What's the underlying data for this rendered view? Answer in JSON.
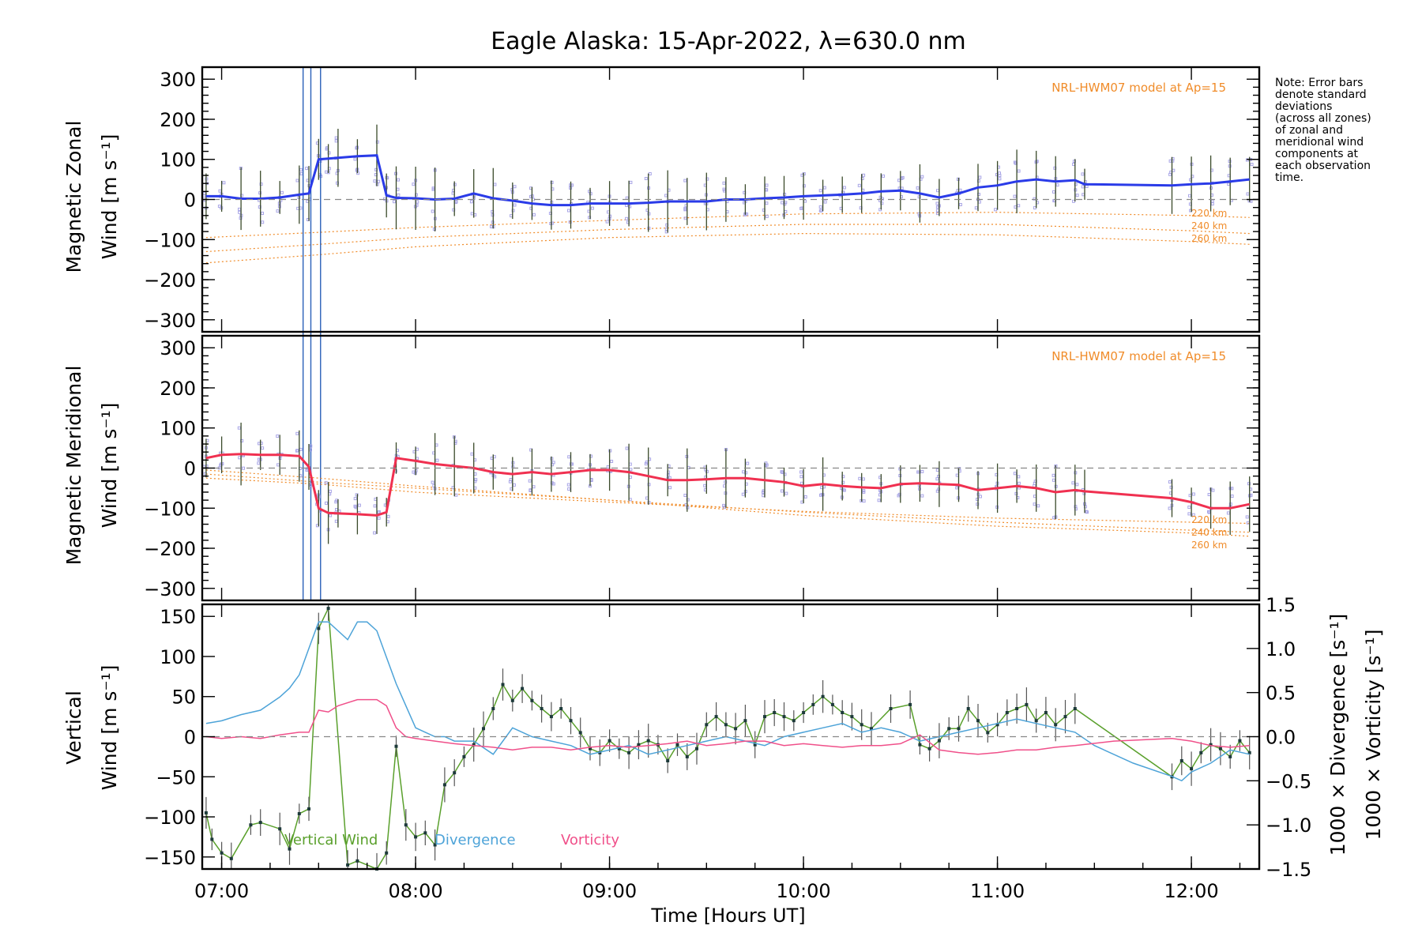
{
  "chart_data": [
    {
      "panel": "zonal",
      "type": "line",
      "title": "Eagle Alaska: 15-Apr-2022, λ=630.0 nm",
      "ylabel": [
        "Magnetic Zonal",
        "Wind [m s⁻¹]"
      ],
      "ylim": [
        -330,
        330
      ],
      "yticks": [
        300,
        200,
        100,
        0,
        -100,
        -200,
        -300
      ],
      "model_label": "NRL-HWM07 model at Ap=15",
      "altitude_labels": [
        "220 km",
        "240 km",
        "260 km"
      ],
      "reference_line": 0,
      "colors": {
        "wind": "#2a3be8",
        "model": "#f08c2a",
        "samples": "#a9a6e6",
        "errorbar": "#3a4a2a"
      },
      "series": [
        {
          "x": [
            6.92,
            7.0,
            7.1,
            7.2,
            7.3,
            7.4,
            7.45,
            7.5,
            7.55,
            7.6,
            7.7,
            7.8,
            7.85,
            7.9,
            8.0,
            8.1,
            8.2,
            8.3,
            8.4,
            8.5,
            8.6,
            8.7,
            8.8,
            8.9,
            9.0,
            9.1,
            9.2,
            9.3,
            9.4,
            9.5,
            9.6,
            9.7,
            9.8,
            9.9,
            10.0,
            10.1,
            10.2,
            10.3,
            10.4,
            10.5,
            10.6,
            10.7,
            10.8,
            10.9,
            11.0,
            11.1,
            11.2,
            11.3,
            11.4,
            11.45,
            11.9,
            12.0,
            12.1,
            12.2,
            12.3
          ],
          "values": [
            8,
            8,
            2,
            2,
            5,
            12,
            15,
            100,
            102,
            104,
            108,
            110,
            10,
            4,
            3,
            0,
            2,
            15,
            3,
            -3,
            -10,
            -14,
            -14,
            -10,
            -10,
            -10,
            -8,
            -5,
            -5,
            -5,
            0,
            0,
            3,
            5,
            8,
            10,
            12,
            15,
            20,
            22,
            15,
            5,
            15,
            30,
            35,
            45,
            50,
            45,
            48,
            38,
            35,
            38,
            40,
            45,
            50
          ]
        }
      ],
      "model_curves": [
        {
          "name": "220 km",
          "x": [
            6.92,
            7.5,
            8.0,
            9.0,
            10.0,
            11.0,
            12.0,
            12.3
          ],
          "values": [
            -95,
            -82,
            -70,
            -52,
            -36,
            -32,
            -40,
            -45
          ]
        },
        {
          "name": "240 km",
          "x": [
            6.92,
            7.5,
            8.0,
            9.0,
            10.0,
            11.0,
            12.0,
            12.3
          ],
          "values": [
            -130,
            -112,
            -95,
            -75,
            -62,
            -62,
            -78,
            -85
          ]
        },
        {
          "name": "260 km",
          "x": [
            6.92,
            7.5,
            8.0,
            9.0,
            10.0,
            11.0,
            12.0,
            12.3
          ],
          "values": [
            -158,
            -138,
            -118,
            -95,
            -85,
            -88,
            -105,
            -112
          ]
        }
      ]
    },
    {
      "panel": "meridional",
      "type": "line",
      "ylabel": [
        "Magnetic Meridional",
        "Wind [m s⁻¹]"
      ],
      "ylim": [
        -330,
        330
      ],
      "yticks": [
        300,
        200,
        100,
        0,
        -100,
        -200,
        -300
      ],
      "model_label": "NRL-HWM07 model at Ap=15",
      "altitude_labels": [
        "220 km",
        "240 km",
        "260 km"
      ],
      "reference_line": 0,
      "colors": {
        "wind": "#f03050",
        "model": "#f08c2a",
        "samples": "#a9a6e6",
        "errorbar": "#3a4a2a"
      },
      "series": [
        {
          "x": [
            6.92,
            7.0,
            7.1,
            7.2,
            7.3,
            7.4,
            7.45,
            7.5,
            7.55,
            7.6,
            7.7,
            7.8,
            7.85,
            7.9,
            8.0,
            8.1,
            8.2,
            8.3,
            8.4,
            8.5,
            8.6,
            8.7,
            8.8,
            8.9,
            9.0,
            9.1,
            9.2,
            9.3,
            9.4,
            9.5,
            9.6,
            9.7,
            9.8,
            9.9,
            10.0,
            10.1,
            10.2,
            10.3,
            10.4,
            10.5,
            10.6,
            10.7,
            10.8,
            10.9,
            11.0,
            11.1,
            11.2,
            11.3,
            11.4,
            11.45,
            11.9,
            12.0,
            12.1,
            12.2,
            12.3
          ],
          "values": [
            25,
            33,
            35,
            33,
            33,
            30,
            3,
            -100,
            -112,
            -113,
            -115,
            -118,
            -110,
            25,
            18,
            10,
            5,
            0,
            -10,
            -15,
            -10,
            -15,
            -10,
            -5,
            -5,
            -10,
            -20,
            -30,
            -30,
            -28,
            -25,
            -25,
            -30,
            -35,
            -45,
            -40,
            -45,
            -48,
            -50,
            -40,
            -38,
            -40,
            -42,
            -55,
            -50,
            -45,
            -50,
            -60,
            -55,
            -58,
            -75,
            -85,
            -100,
            -100,
            -90
          ]
        }
      ],
      "model_curves": [
        {
          "name": "220 km",
          "x": [
            6.92,
            7.5,
            8.0,
            9.0,
            10.0,
            11.0,
            12.0,
            12.3
          ],
          "values": [
            -25,
            -40,
            -60,
            -85,
            -108,
            -125,
            -135,
            -138
          ]
        },
        {
          "name": "240 km",
          "x": [
            6.92,
            7.5,
            8.0,
            9.0,
            10.0,
            11.0,
            12.0,
            12.3
          ],
          "values": [
            -15,
            -35,
            -50,
            -80,
            -110,
            -135,
            -155,
            -160
          ]
        },
        {
          "name": "260 km",
          "x": [
            6.92,
            7.5,
            8.0,
            9.0,
            10.0,
            11.0,
            12.0,
            12.3
          ],
          "values": [
            -5,
            -25,
            -45,
            -80,
            -118,
            -145,
            -162,
            -170
          ]
        }
      ]
    },
    {
      "panel": "vertical",
      "type": "line",
      "xlabel": "Time [Hours UT]",
      "xticks": [
        "07:00",
        "08:00",
        "09:00",
        "10:00",
        "11:00",
        "12:00"
      ],
      "xtick_values": [
        7,
        8,
        9,
        10,
        11,
        12
      ],
      "xlim": [
        6.9,
        12.35
      ],
      "ylabel_left": [
        "Vertical",
        "Wind [m s⁻¹]"
      ],
      "ylim_left": [
        -165,
        165
      ],
      "yticks_left": [
        150,
        100,
        50,
        0,
        -50,
        -100,
        -150
      ],
      "ylabel_right_divergence": "1000 × Divergence [s⁻¹]",
      "ylabel_right_vorticity": "1000 × Vorticity [s⁻¹]",
      "ylim_right": [
        -1.5,
        1.5
      ],
      "yticks_right": [
        "1.5",
        "1.0",
        "0.5",
        "0.0",
        "−0.5",
        "−1.0",
        "−1.5"
      ],
      "yticks_right_values": [
        1.5,
        1.0,
        0.5,
        0.0,
        -0.5,
        -1.0,
        -1.5
      ],
      "legend": [
        "Vertical Wind",
        "Divergence",
        "Vorticity"
      ],
      "reference_line": 0,
      "series": [
        {
          "name": "Vertical Wind",
          "color": "#5aa02c",
          "axis": "left",
          "x": [
            6.92,
            6.95,
            7.0,
            7.05,
            7.15,
            7.2,
            7.3,
            7.35,
            7.4,
            7.45,
            7.5,
            7.55,
            7.65,
            7.7,
            7.8,
            7.85,
            7.9,
            7.95,
            8.0,
            8.05,
            8.1,
            8.15,
            8.2,
            8.25,
            8.3,
            8.35,
            8.4,
            8.45,
            8.5,
            8.55,
            8.6,
            8.65,
            8.7,
            8.75,
            8.8,
            8.85,
            8.9,
            8.95,
            9.0,
            9.05,
            9.1,
            9.15,
            9.2,
            9.25,
            9.3,
            9.35,
            9.4,
            9.45,
            9.5,
            9.55,
            9.6,
            9.65,
            9.7,
            9.75,
            9.8,
            9.85,
            9.9,
            9.95,
            10.0,
            10.05,
            10.1,
            10.15,
            10.2,
            10.25,
            10.3,
            10.35,
            10.45,
            10.55,
            10.6,
            10.65,
            10.7,
            10.75,
            10.8,
            10.85,
            10.9,
            10.95,
            11.0,
            11.05,
            11.1,
            11.15,
            11.2,
            11.25,
            11.3,
            11.35,
            11.4,
            11.9,
            11.95,
            12.0,
            12.05,
            12.1,
            12.15,
            12.2,
            12.25,
            12.3
          ],
          "values": [
            -95,
            -128,
            -145,
            -152,
            -110,
            -107,
            -115,
            -140,
            -96,
            -90,
            135,
            160,
            -160,
            -155,
            -165,
            -145,
            -12,
            -110,
            -125,
            -120,
            -135,
            -60,
            -45,
            -25,
            -10,
            10,
            35,
            65,
            45,
            60,
            45,
            35,
            25,
            35,
            20,
            5,
            -15,
            -20,
            -5,
            -15,
            -20,
            -10,
            -5,
            -10,
            -30,
            -10,
            -25,
            -15,
            15,
            25,
            15,
            10,
            20,
            -10,
            25,
            30,
            25,
            20,
            30,
            40,
            50,
            40,
            30,
            25,
            15,
            10,
            35,
            40,
            -10,
            -15,
            -5,
            10,
            10,
            35,
            20,
            5,
            15,
            30,
            35,
            40,
            20,
            30,
            15,
            25,
            35,
            -50,
            -30,
            -40,
            -20,
            -10,
            -15,
            -25,
            -5,
            -20
          ]
        },
        {
          "name": "Divergence",
          "color": "#4da3d8",
          "axis": "right",
          "x": [
            6.92,
            7.0,
            7.1,
            7.2,
            7.3,
            7.35,
            7.4,
            7.45,
            7.5,
            7.55,
            7.6,
            7.65,
            7.7,
            7.75,
            7.8,
            7.85,
            7.9,
            7.95,
            8.0,
            8.05,
            8.1,
            8.15,
            8.2,
            8.3,
            8.4,
            8.5,
            8.6,
            8.7,
            8.8,
            8.9,
            9.0,
            9.1,
            9.2,
            9.3,
            9.4,
            9.5,
            9.6,
            9.7,
            9.8,
            9.9,
            10.0,
            10.1,
            10.2,
            10.3,
            10.4,
            10.5,
            10.6,
            10.7,
            10.8,
            10.9,
            11.0,
            11.1,
            11.2,
            11.3,
            11.4,
            11.5,
            11.7,
            11.9,
            11.95,
            12.0,
            12.1,
            12.2,
            12.3
          ],
          "values": [
            0.15,
            0.18,
            0.25,
            0.3,
            0.45,
            0.55,
            0.7,
            1.0,
            1.3,
            1.3,
            1.2,
            1.1,
            1.3,
            1.3,
            1.2,
            0.9,
            0.6,
            0.35,
            0.1,
            0.05,
            0.0,
            0.0,
            -0.05,
            -0.05,
            -0.2,
            0.1,
            0.0,
            -0.05,
            -0.1,
            -0.2,
            -0.15,
            -0.1,
            -0.2,
            -0.15,
            -0.1,
            -0.05,
            0.0,
            -0.05,
            -0.1,
            0.0,
            0.05,
            0.1,
            0.15,
            0.05,
            0.1,
            0.05,
            -0.05,
            0.0,
            0.05,
            0.1,
            0.15,
            0.2,
            0.15,
            0.1,
            0.05,
            -0.1,
            -0.3,
            -0.45,
            -0.5,
            -0.4,
            -0.3,
            -0.15,
            -0.2
          ]
        },
        {
          "name": "Vorticity",
          "color": "#f0508a",
          "axis": "right",
          "x": [
            6.92,
            7.0,
            7.1,
            7.2,
            7.3,
            7.4,
            7.45,
            7.5,
            7.55,
            7.6,
            7.7,
            7.8,
            7.85,
            7.9,
            7.95,
            8.0,
            8.1,
            8.2,
            8.3,
            8.4,
            8.5,
            8.6,
            8.7,
            8.8,
            8.9,
            9.0,
            9.1,
            9.2,
            9.3,
            9.4,
            9.5,
            9.6,
            9.7,
            9.8,
            9.9,
            10.0,
            10.1,
            10.2,
            10.3,
            10.4,
            10.5,
            10.6,
            10.7,
            10.8,
            10.9,
            11.0,
            11.1,
            11.2,
            11.3,
            11.4,
            11.6,
            11.9,
            12.0,
            12.1,
            12.2,
            12.3
          ],
          "values": [
            0.0,
            -0.02,
            0.0,
            -0.02,
            0.02,
            0.05,
            0.05,
            0.3,
            0.28,
            0.35,
            0.42,
            0.42,
            0.35,
            0.1,
            0.0,
            -0.02,
            -0.05,
            -0.08,
            -0.1,
            -0.12,
            -0.15,
            -0.12,
            -0.12,
            -0.15,
            -0.12,
            -0.1,
            -0.12,
            -0.1,
            -0.08,
            -0.05,
            -0.1,
            -0.08,
            -0.05,
            -0.05,
            -0.1,
            -0.08,
            -0.1,
            -0.12,
            -0.1,
            -0.1,
            -0.08,
            0.02,
            -0.15,
            -0.18,
            -0.2,
            -0.18,
            -0.15,
            -0.15,
            -0.12,
            -0.1,
            -0.05,
            -0.02,
            -0.05,
            -0.1,
            -0.12,
            -0.1
          ]
        }
      ]
    }
  ],
  "note_lines": [
    "Note: Error bars",
    "denote standard",
    "deviations",
    "(across all zones)",
    "of zonal and",
    "meridional wind",
    "components at",
    "each observation",
    "time."
  ]
}
